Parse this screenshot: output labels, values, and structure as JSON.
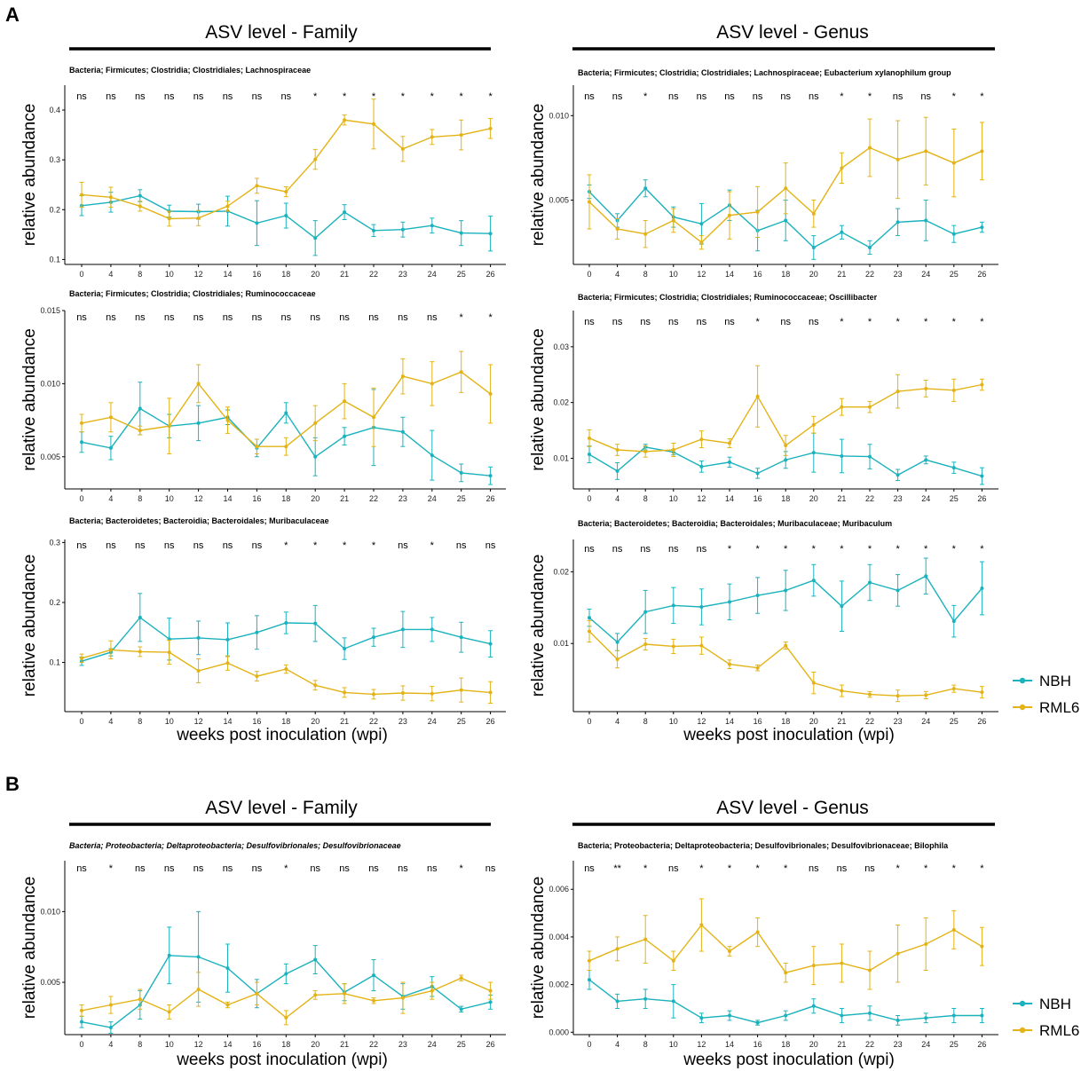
{
  "labels": {
    "panel_a": "A",
    "panel_b": "B"
  },
  "colors": {
    "NBH": "#1ab2bd",
    "RML6": "#e3b316"
  },
  "xlabel": "weeks post inoculation (wpi)",
  "ylabel": "relative abundance",
  "legend": [
    {
      "name": "NBH",
      "color": "#1ab2bd"
    },
    {
      "name": "RML6",
      "color": "#e3b316"
    }
  ],
  "section_titles": {
    "a_left": "ASV level - Family",
    "a_right": "ASV level - Genus",
    "b_left": "ASV level - Family",
    "b_right": "ASV level - Genus"
  },
  "chart_data": [
    {
      "type": "line",
      "title": "Bacteria; Firmicutes; Clostridia; Clostridiales; Lachnospiraceae",
      "categories": [
        "0",
        "4",
        "8",
        "10",
        "12",
        "14",
        "16",
        "18",
        "20",
        "21",
        "22",
        "23",
        "24",
        "25",
        "26"
      ],
      "significance": [
        "ns",
        "ns",
        "ns",
        "ns",
        "ns",
        "ns",
        "ns",
        "ns",
        "*",
        "*",
        "*",
        "*",
        "*",
        "*",
        "*"
      ],
      "ylim": [
        0.09,
        0.45
      ],
      "yticks": [
        0.1,
        0.2,
        0.3,
        0.4
      ],
      "yticklabels": [
        "0.1",
        "0.2",
        "0.3",
        "0.4"
      ],
      "series": [
        {
          "name": "NBH",
          "values": [
            0.208,
            0.215,
            0.228,
            0.197,
            0.196,
            0.197,
            0.173,
            0.188,
            0.143,
            0.195,
            0.158,
            0.16,
            0.168,
            0.153,
            0.152
          ],
          "err": [
            0.02,
            0.02,
            0.012,
            0.012,
            0.015,
            0.03,
            0.045,
            0.025,
            0.035,
            0.015,
            0.012,
            0.015,
            0.015,
            0.025,
            0.035
          ]
        },
        {
          "name": "RML6",
          "values": [
            0.23,
            0.225,
            0.207,
            0.182,
            0.183,
            0.207,
            0.248,
            0.236,
            0.301,
            0.38,
            0.372,
            0.322,
            0.346,
            0.35,
            0.363
          ],
          "err": [
            0.025,
            0.02,
            0.01,
            0.015,
            0.015,
            0.01,
            0.015,
            0.01,
            0.02,
            0.01,
            0.05,
            0.025,
            0.015,
            0.03,
            0.02
          ]
        }
      ]
    },
    {
      "type": "line",
      "title": "Bacteria; Firmicutes; Clostridia; Clostridiales; Lachnospiraceae; Eubacterium xylanophilum group",
      "categories": [
        "0",
        "4",
        "8",
        "10",
        "12",
        "14",
        "16",
        "18",
        "20",
        "21",
        "22",
        "23",
        "24",
        "25",
        "26"
      ],
      "significance": [
        "ns",
        "ns",
        "*",
        "ns",
        "ns",
        "ns",
        "ns",
        "ns",
        "ns",
        "*",
        "*",
        "ns",
        "ns",
        "*",
        "*"
      ],
      "ylim": [
        0.0012,
        0.0118
      ],
      "yticks": [
        0.005,
        0.01
      ],
      "yticklabels": [
        "0.005",
        "0.010"
      ],
      "series": [
        {
          "name": "NBH",
          "values": [
            0.0055,
            0.0038,
            0.0057,
            0.004,
            0.0036,
            0.0047,
            0.0032,
            0.0038,
            0.0022,
            0.0031,
            0.0022,
            0.0037,
            0.0038,
            0.003,
            0.0034
          ],
          "err": [
            0.0004,
            0.0004,
            0.0005,
            0.0006,
            0.0012,
            0.0009,
            0.0012,
            0.0012,
            0.0007,
            0.0004,
            0.0004,
            0.0008,
            0.0012,
            0.0005,
            0.0003
          ]
        },
        {
          "name": "RML6",
          "values": [
            0.0049,
            0.0033,
            0.003,
            0.0038,
            0.0025,
            0.0041,
            0.0043,
            0.0057,
            0.0042,
            0.0069,
            0.0081,
            0.0074,
            0.0079,
            0.0072,
            0.0079
          ],
          "err": [
            0.0016,
            0.0006,
            0.0008,
            0.0007,
            0.0004,
            0.0014,
            0.0015,
            0.0015,
            0.0008,
            0.0009,
            0.0017,
            0.0023,
            0.002,
            0.002,
            0.0017
          ]
        }
      ]
    },
    {
      "type": "line",
      "title": "Bacteria; Firmicutes; Clostridia; Clostridiales; Ruminococcaceae",
      "categories": [
        "0",
        "4",
        "8",
        "10",
        "12",
        "14",
        "16",
        "18",
        "20",
        "21",
        "22",
        "23",
        "24",
        "25",
        "26"
      ],
      "significance": [
        "ns",
        "ns",
        "ns",
        "ns",
        "ns",
        "ns",
        "ns",
        "ns",
        "ns",
        "ns",
        "ns",
        "ns",
        "ns",
        "*",
        "*"
      ],
      "ylim": [
        0.0028,
        0.015
      ],
      "yticks": [
        0.005,
        0.01,
        0.015
      ],
      "yticklabels": [
        "0.005",
        "0.010",
        "0.015"
      ],
      "series": [
        {
          "name": "NBH",
          "values": [
            0.006,
            0.0056,
            0.0083,
            0.0071,
            0.0073,
            0.0077,
            0.0056,
            0.008,
            0.005,
            0.0064,
            0.007,
            0.0067,
            0.0051,
            0.0039,
            0.0037
          ],
          "err": [
            0.0007,
            0.0008,
            0.0018,
            0.0008,
            0.0012,
            0.0005,
            0.0006,
            0.0007,
            0.0013,
            0.0006,
            0.0026,
            0.001,
            0.0017,
            0.0006,
            0.0006
          ]
        },
        {
          "name": "RML6",
          "values": [
            0.0073,
            0.0077,
            0.0068,
            0.0071,
            0.01,
            0.0075,
            0.0057,
            0.0057,
            0.0073,
            0.0088,
            0.0077,
            0.0105,
            0.01,
            0.0108,
            0.0093
          ],
          "err": [
            0.0006,
            0.001,
            0.0003,
            0.0019,
            0.0013,
            0.0009,
            0.0005,
            0.0006,
            0.0012,
            0.0012,
            0.002,
            0.0012,
            0.0015,
            0.0014,
            0.002
          ]
        }
      ]
    },
    {
      "type": "line",
      "title": "Bacteria; Firmicutes; Clostridia; Clostridiales; Ruminococcaceae; Oscillibacter",
      "categories": [
        "0",
        "4",
        "8",
        "10",
        "12",
        "14",
        "16",
        "18",
        "20",
        "21",
        "22",
        "23",
        "24",
        "25",
        "26"
      ],
      "significance": [
        "ns",
        "ns",
        "ns",
        "ns",
        "ns",
        "ns",
        "*",
        "ns",
        "ns",
        "*",
        "*",
        "*",
        "*",
        "*",
        "*"
      ],
      "ylim": [
        0.0045,
        0.0365
      ],
      "yticks": [
        0.01,
        0.02,
        0.03
      ],
      "yticklabels": [
        "0.01",
        "0.02",
        "0.03"
      ],
      "series": [
        {
          "name": "NBH",
          "values": [
            0.0107,
            0.0077,
            0.012,
            0.0111,
            0.0085,
            0.0093,
            0.0073,
            0.0097,
            0.011,
            0.0104,
            0.0103,
            0.007,
            0.0097,
            0.0083,
            0.0068
          ],
          "err": [
            0.0015,
            0.0015,
            0.0005,
            0.0005,
            0.001,
            0.0009,
            0.0009,
            0.0015,
            0.0035,
            0.003,
            0.0022,
            0.001,
            0.0007,
            0.001,
            0.0015
          ]
        },
        {
          "name": "RML6",
          "values": [
            0.0136,
            0.0115,
            0.0112,
            0.0115,
            0.0134,
            0.0127,
            0.0211,
            0.0123,
            0.016,
            0.0192,
            0.0192,
            0.022,
            0.0225,
            0.0222,
            0.0232
          ],
          "err": [
            0.0015,
            0.001,
            0.001,
            0.0012,
            0.0015,
            0.0008,
            0.0055,
            0.0018,
            0.0015,
            0.0015,
            0.001,
            0.003,
            0.0015,
            0.002,
            0.001
          ]
        }
      ]
    },
    {
      "type": "line",
      "title": "Bacteria; Bacteroidetes; Bacteroidia; Bacteroidales; Muribaculaceae",
      "categories": [
        "0",
        "4",
        "8",
        "10",
        "12",
        "14",
        "16",
        "18",
        "20",
        "21",
        "22",
        "23",
        "24",
        "25",
        "26"
      ],
      "significance": [
        "ns",
        "ns",
        "ns",
        "ns",
        "ns",
        "ns",
        "ns",
        "*",
        "*",
        "*",
        "*",
        "ns",
        "*",
        "ns",
        "ns"
      ],
      "ylim": [
        0.018,
        0.305
      ],
      "yticks": [
        0.1,
        0.2,
        0.3
      ],
      "yticklabels": [
        "0.1",
        "0.2",
        "0.3"
      ],
      "series": [
        {
          "name": "NBH",
          "values": [
            0.102,
            0.117,
            0.175,
            0.139,
            0.141,
            0.138,
            0.15,
            0.166,
            0.165,
            0.123,
            0.142,
            0.155,
            0.155,
            0.142,
            0.131
          ],
          "err": [
            0.007,
            0.006,
            0.04,
            0.035,
            0.028,
            0.028,
            0.028,
            0.018,
            0.03,
            0.018,
            0.015,
            0.03,
            0.02,
            0.025,
            0.022
          ]
        },
        {
          "name": "RML6",
          "values": [
            0.107,
            0.121,
            0.118,
            0.117,
            0.086,
            0.099,
            0.077,
            0.089,
            0.062,
            0.05,
            0.047,
            0.049,
            0.048,
            0.054,
            0.05
          ],
          "err": [
            0.007,
            0.015,
            0.008,
            0.02,
            0.02,
            0.012,
            0.008,
            0.007,
            0.008,
            0.008,
            0.008,
            0.012,
            0.012,
            0.02,
            0.018
          ]
        }
      ]
    },
    {
      "type": "line",
      "title": "Bacteria; Bacteroidetes; Bacteroidia; Bacteroidales; Muribaculaceae; Muribaculum",
      "categories": [
        "0",
        "4",
        "8",
        "10",
        "12",
        "14",
        "16",
        "18",
        "20",
        "21",
        "22",
        "23",
        "24",
        "25",
        "26"
      ],
      "significance": [
        "ns",
        "ns",
        "ns",
        "ns",
        "ns",
        "*",
        "*",
        "*",
        "*",
        "*",
        "*",
        "*",
        "*",
        "*",
        "*"
      ],
      "ylim": [
        0.0005,
        0.0245
      ],
      "yticks": [
        0.01,
        0.02
      ],
      "yticklabels": [
        "0.01",
        "0.02"
      ],
      "series": [
        {
          "name": "NBH",
          "values": [
            0.0136,
            0.0102,
            0.0144,
            0.0153,
            0.0151,
            0.0158,
            0.0167,
            0.0174,
            0.0188,
            0.0152,
            0.0185,
            0.0174,
            0.0194,
            0.0131,
            0.0177
          ],
          "err": [
            0.0012,
            0.0012,
            0.003,
            0.0025,
            0.0025,
            0.0025,
            0.0025,
            0.0028,
            0.0022,
            0.0035,
            0.0025,
            0.0022,
            0.0025,
            0.0022,
            0.0037
          ]
        },
        {
          "name": "RML6",
          "values": [
            0.0117,
            0.0078,
            0.0099,
            0.0096,
            0.0097,
            0.0071,
            0.0066,
            0.0097,
            0.0045,
            0.0034,
            0.0029,
            0.0027,
            0.0028,
            0.0037,
            0.0032
          ],
          "err": [
            0.0015,
            0.0012,
            0.0008,
            0.001,
            0.0012,
            0.0006,
            0.0004,
            0.0005,
            0.0015,
            0.0008,
            0.0004,
            0.0008,
            0.0005,
            0.0005,
            0.0008
          ]
        }
      ]
    },
    {
      "type": "line",
      "title": "Bacteria; Proteobacteria; Deltaproteobacteria; Desulfovibrionales; Desulfovibrionaceae",
      "categories": [
        "0",
        "4",
        "8",
        "10",
        "12",
        "14",
        "16",
        "18",
        "20",
        "21",
        "22",
        "23",
        "24",
        "25",
        "26"
      ],
      "significance": [
        "ns",
        "*",
        "ns",
        "ns",
        "ns",
        "ns",
        "ns",
        "*",
        "ns",
        "ns",
        "ns",
        "ns",
        "ns",
        "*",
        "ns"
      ],
      "ylim": [
        0.0013,
        0.0136
      ],
      "yticks": [
        0.005,
        0.01
      ],
      "yticklabels": [
        "0.005",
        "0.010"
      ],
      "series": [
        {
          "name": "NBH",
          "values": [
            0.0022,
            0.0018,
            0.0034,
            0.0069,
            0.0068,
            0.006,
            0.0042,
            0.0056,
            0.0066,
            0.0043,
            0.0055,
            0.004,
            0.0047,
            0.0031,
            0.0036
          ],
          "err": [
            0.0004,
            0.0004,
            0.001,
            0.002,
            0.0032,
            0.0017,
            0.001,
            0.0007,
            0.001,
            0.0006,
            0.0011,
            0.0009,
            0.0007,
            0.0002,
            0.0005
          ]
        },
        {
          "name": "RML6",
          "values": [
            0.003,
            0.0034,
            0.0038,
            0.0029,
            0.0045,
            0.0034,
            0.0042,
            0.0025,
            0.0041,
            0.0042,
            0.0037,
            0.0039,
            0.0044,
            0.0053,
            0.0044
          ],
          "err": [
            0.0004,
            0.0006,
            0.0007,
            0.0005,
            0.0012,
            0.0002,
            0.0008,
            0.0005,
            0.0003,
            0.0007,
            0.0002,
            0.0011,
            0.0006,
            0.0002,
            0.0006
          ]
        }
      ]
    },
    {
      "type": "line",
      "title": "Bacteria; Proteobacteria; Deltaproteobacteria; Desulfovibrionales; Desulfovibrionaceae; Bilophila",
      "categories": [
        "0",
        "4",
        "8",
        "10",
        "12",
        "14",
        "16",
        "18",
        "20",
        "21",
        "22",
        "23",
        "24",
        "25",
        "26"
      ],
      "significance": [
        "ns",
        "**",
        "*",
        "ns",
        "*",
        "*",
        "*",
        "*",
        "ns",
        "ns",
        "ns",
        "*",
        "*",
        "*",
        "*"
      ],
      "ylim": [
        -0.0001,
        0.0072
      ],
      "yticks": [
        0.0,
        0.002,
        0.004,
        0.006
      ],
      "yticklabels": [
        "0.000",
        "0.002",
        "0.004",
        "0.006"
      ],
      "series": [
        {
          "name": "NBH",
          "values": [
            0.0022,
            0.0013,
            0.0014,
            0.0013,
            0.0006,
            0.0007,
            0.0004,
            0.0007,
            0.0011,
            0.0007,
            0.0008,
            0.0005,
            0.0006,
            0.0007,
            0.0007
          ],
          "err": [
            0.0004,
            0.0003,
            0.0004,
            0.0007,
            0.0002,
            0.0002,
            0.0001,
            0.0002,
            0.0003,
            0.0003,
            0.0003,
            0.0002,
            0.0002,
            0.0003,
            0.0003
          ]
        },
        {
          "name": "RML6",
          "values": [
            0.003,
            0.0035,
            0.0039,
            0.003,
            0.0045,
            0.0034,
            0.0042,
            0.0025,
            0.0028,
            0.0029,
            0.0026,
            0.0033,
            0.0037,
            0.0043,
            0.0036
          ],
          "err": [
            0.0004,
            0.0005,
            0.001,
            0.0004,
            0.0011,
            0.0002,
            0.0006,
            0.0004,
            0.0008,
            0.0008,
            0.0008,
            0.0012,
            0.0011,
            0.0008,
            0.0008
          ]
        }
      ]
    }
  ]
}
